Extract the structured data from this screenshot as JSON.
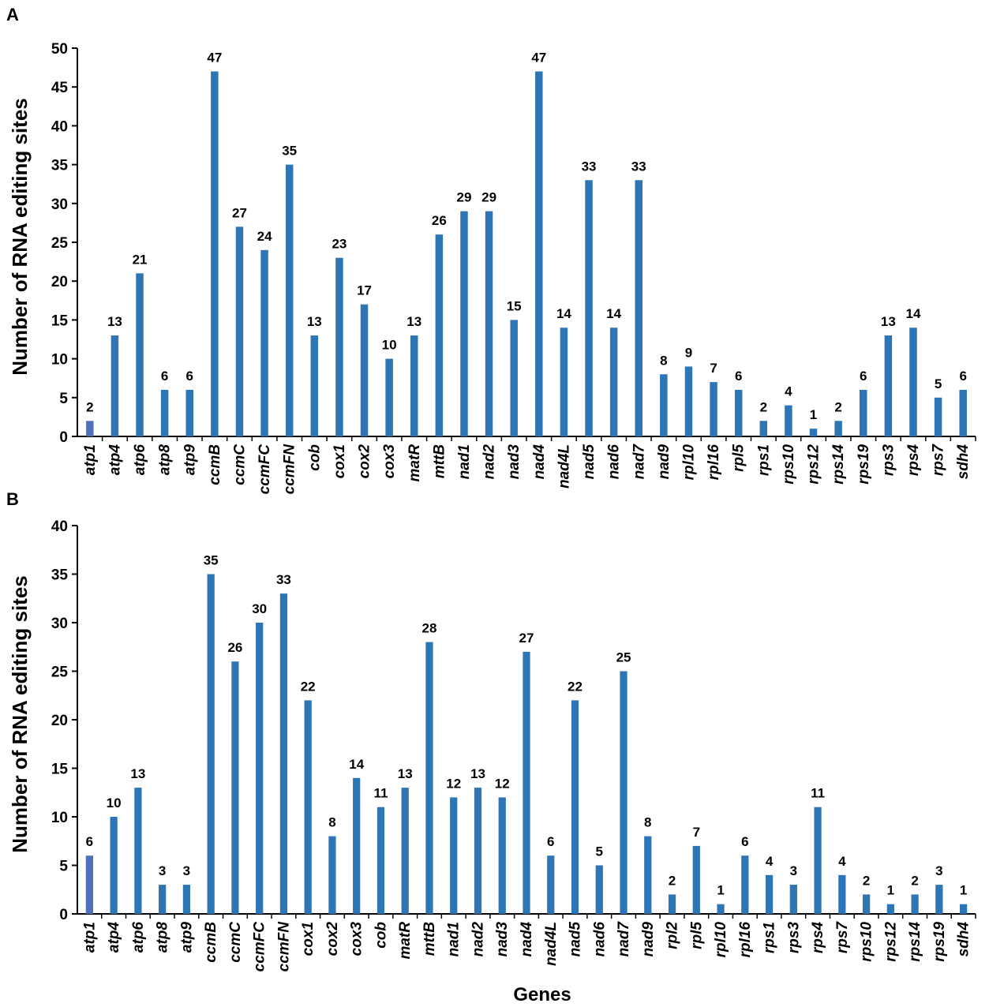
{
  "colors": {
    "bar": "#2e75b6",
    "first_bar": "#4f6fbf",
    "axis": "#000000"
  },
  "chart_data": [
    {
      "type": "bar",
      "panel": "A",
      "title": "",
      "ylabel": "Number of RNA editing sites",
      "xlabel": "",
      "ylim": [
        0,
        50
      ],
      "yticks": [
        0,
        5,
        10,
        15,
        20,
        25,
        30,
        35,
        40,
        45,
        50
      ],
      "grid": false,
      "categories": [
        "atp1",
        "atp4",
        "atp6",
        "atp8",
        "atp9",
        "ccmB",
        "ccmC",
        "ccmFC",
        "ccmFN",
        "cob",
        "cox1",
        "cox2",
        "cox3",
        "matR",
        "mttB",
        "nad1",
        "nad2",
        "nad3",
        "nad4",
        "nad4L",
        "nad5",
        "nad6",
        "nad7",
        "nad9",
        "rpl10",
        "rpl16",
        "rpl5",
        "rps1",
        "rps10",
        "rps12",
        "rps14",
        "rps19",
        "rps3",
        "rps4",
        "rps7",
        "sdh4"
      ],
      "values": [
        2,
        13,
        21,
        6,
        6,
        47,
        27,
        24,
        35,
        13,
        23,
        17,
        10,
        13,
        26,
        29,
        29,
        15,
        47,
        14,
        33,
        14,
        33,
        8,
        9,
        7,
        6,
        2,
        4,
        1,
        2,
        6,
        13,
        14,
        5,
        6
      ]
    },
    {
      "type": "bar",
      "panel": "B",
      "title": "",
      "ylabel": "Number of RNA editing sites",
      "xlabel": "Genes",
      "ylim": [
        0,
        40
      ],
      "yticks": [
        0,
        5,
        10,
        15,
        20,
        25,
        30,
        35,
        40
      ],
      "grid": false,
      "categories": [
        "atp1",
        "atp4",
        "atp6",
        "atp8",
        "atp9",
        "ccmB",
        "ccmC",
        "ccmFC",
        "ccmFN",
        "cox1",
        "cox2",
        "cox3",
        "cob",
        "matR",
        "mttB",
        "nad1",
        "nad2",
        "nad3",
        "nad4",
        "nad4L",
        "nad5",
        "nad6",
        "nad7",
        "nad9",
        "rpl2",
        "rpl5",
        "rpl10",
        "rpl16",
        "rps1",
        "rps3",
        "rps4",
        "rps7",
        "rps10",
        "rps12",
        "rps14",
        "rps19",
        "sdh4"
      ],
      "values": [
        6,
        10,
        13,
        3,
        3,
        35,
        26,
        30,
        33,
        22,
        8,
        14,
        11,
        13,
        28,
        12,
        13,
        12,
        27,
        6,
        22,
        5,
        25,
        8,
        2,
        7,
        1,
        6,
        4,
        3,
        11,
        4,
        2,
        1,
        2,
        3,
        1
      ]
    }
  ]
}
